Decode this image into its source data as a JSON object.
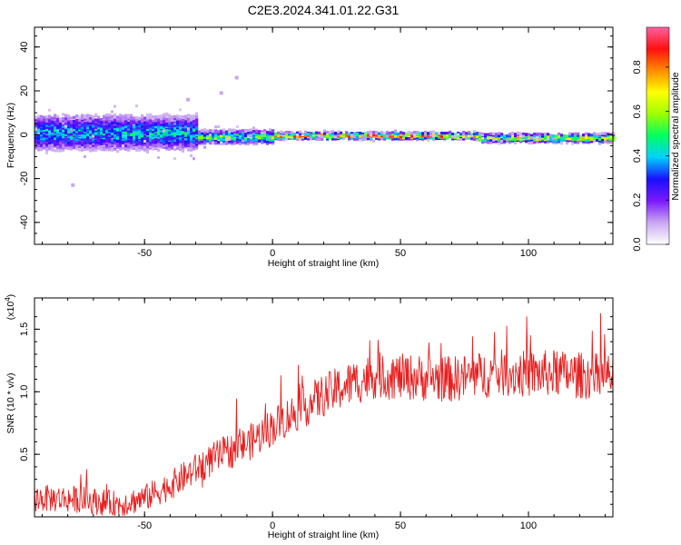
{
  "title": "C2E3.2024.341.01.22.G31",
  "colorbar": {
    "label": "Normalized spectral amplitude",
    "ticks": [
      "0.0",
      "0.2",
      "0.4",
      "0.6",
      "0.8"
    ],
    "tick_values": [
      0,
      0.2,
      0.4,
      0.6,
      0.8
    ],
    "range": [
      0,
      0.98
    ],
    "colormap": [
      "#ffffff",
      "#c8a8f0",
      "#7b18ff",
      "#1a10ff",
      "#00d0ff",
      "#00ff60",
      "#9dff00",
      "#ffff00",
      "#ff8c00",
      "#ff1010",
      "#ff60a0"
    ]
  },
  "chart_data": [
    {
      "type": "heatmap",
      "xlabel": "Height of straight line (km)",
      "ylabel": "Frequency (Hz)",
      "xlim": [
        -93,
        133
      ],
      "ylim": [
        -50,
        49
      ],
      "xticks": [
        -50,
        0,
        50,
        100
      ],
      "xtick_labels": [
        "-50",
        "0",
        "50",
        "100"
      ],
      "yticks": [
        -40,
        -20,
        0,
        20,
        40
      ],
      "ytick_labels": [
        "-40",
        "-20",
        "0",
        "20",
        "40"
      ],
      "description_series": [
        {
          "x_range": [
            -93,
            -30
          ],
          "f_center": 1,
          "f_spread": 8,
          "amplitude": 0.45
        },
        {
          "x_range": [
            -30,
            0
          ],
          "f_center": -1,
          "f_spread": 3,
          "amplitude": 0.6
        },
        {
          "x_range": [
            0,
            80
          ],
          "f_center": -0.5,
          "f_spread": 1.5,
          "amplitude": 0.9
        },
        {
          "x_range": [
            80,
            133
          ],
          "f_center": -1.5,
          "f_spread": 2,
          "amplitude": 0.7
        }
      ],
      "outliers": [
        {
          "x": -20,
          "f": 19
        },
        {
          "x": -14,
          "f": 26
        },
        {
          "x": -33,
          "f": 16
        },
        {
          "x": -78,
          "f": -23
        }
      ]
    },
    {
      "type": "line",
      "xlabel": "Height of straight line (km)",
      "ylabel": "SNR (10 * v/v)",
      "ymultiplier": "(x10",
      "ymultiplier_exp": "4",
      "ymultiplier_close": ")",
      "xlim": [
        -93,
        133
      ],
      "ylim": [
        0,
        1.75
      ],
      "xticks": [
        -50,
        0,
        50,
        100
      ],
      "xtick_labels": [
        "-50",
        "0",
        "50",
        "100"
      ],
      "yticks": [
        0.5,
        1.0,
        1.5
      ],
      "ytick_labels": [
        "0.5",
        "1.0",
        "1.5"
      ],
      "color": "#e81e1e",
      "trend_x": [
        -93,
        -75,
        -60,
        -50,
        -40,
        -30,
        -20,
        -10,
        0,
        10,
        20,
        30,
        40,
        50,
        60,
        70,
        80,
        90,
        100,
        110,
        120,
        133
      ],
      "trend_y": [
        0.15,
        0.14,
        0.1,
        0.15,
        0.25,
        0.38,
        0.5,
        0.58,
        0.72,
        0.85,
        0.97,
        1.06,
        1.13,
        1.12,
        1.11,
        1.1,
        1.13,
        1.15,
        1.14,
        1.15,
        1.13,
        1.12
      ],
      "noise_amplitude": 0.16,
      "n_points": 900
    }
  ]
}
